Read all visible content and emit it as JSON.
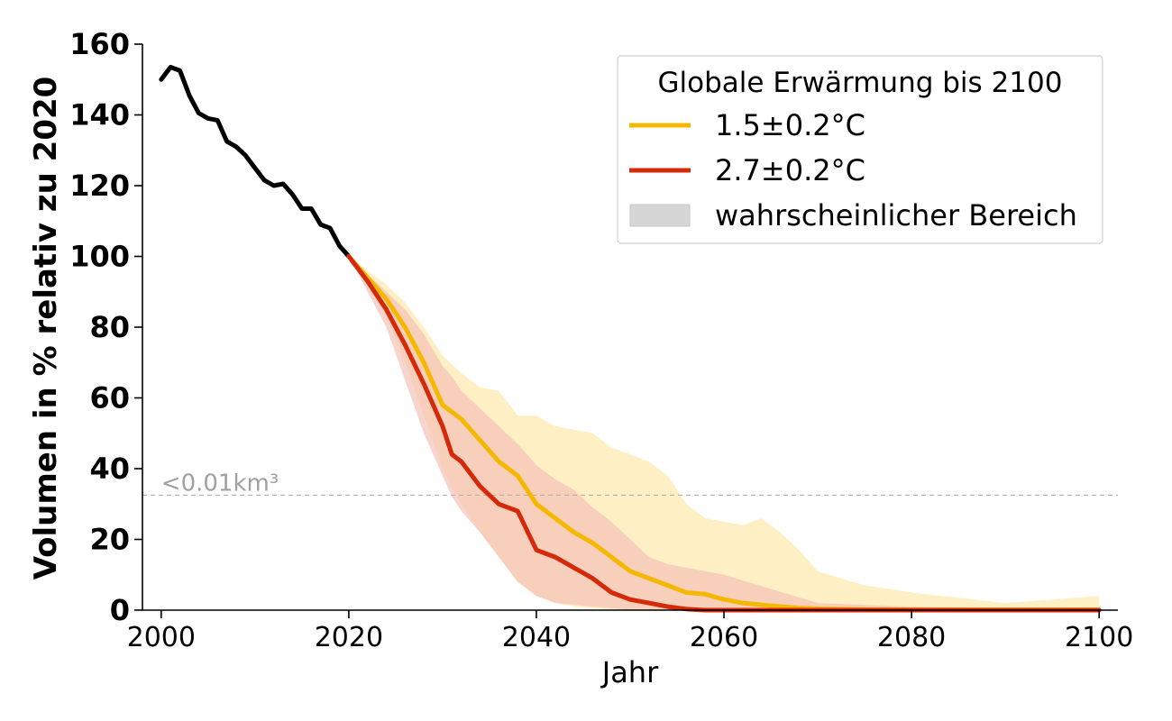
{
  "chart_data": {
    "type": "line",
    "title": "",
    "xlabel": "Jahr",
    "ylabel": "Volumen in % relativ zu 2020",
    "xlim": [
      1998,
      2102
    ],
    "ylim": [
      0,
      160
    ],
    "x_ticks": [
      2000,
      2020,
      2040,
      2060,
      2080,
      2100
    ],
    "x_tick_labels": [
      "2000",
      "2020",
      "2040",
      "2060",
      "2080",
      "2100"
    ],
    "y_ticks": [
      0,
      20,
      40,
      60,
      80,
      100,
      120,
      140,
      160
    ],
    "y_tick_labels": [
      "0",
      "20",
      "40",
      "60",
      "80",
      "100",
      "120",
      "140",
      "160"
    ],
    "grid": false,
    "legend": {
      "title": "Globale Erwärmung bis 2100",
      "placement": "top-right",
      "entries": [
        {
          "label": "1.5±0.2°C",
          "kind": "line",
          "color": "#f5b800"
        },
        {
          "label": "2.7±0.2°C",
          "kind": "line",
          "color": "#d42a0a"
        },
        {
          "label": "wahrscheinlicher Bereich",
          "kind": "patch",
          "color": "#d6d6d6"
        }
      ]
    },
    "annotation": {
      "text": "<0.01km³",
      "y": 32.5,
      "line_style": "dashed",
      "color": "#b0b0b0"
    },
    "historical": {
      "color": "#000000",
      "x": [
        2000,
        2001,
        2002,
        2003,
        2004,
        2005,
        2006,
        2007,
        2008,
        2009,
        2010,
        2011,
        2012,
        2013,
        2014,
        2015,
        2016,
        2017,
        2018,
        2019,
        2020
      ],
      "y": [
        150,
        153.5,
        152.5,
        145.5,
        140.5,
        139,
        138.5,
        132.5,
        131,
        128.5,
        125,
        121.5,
        120,
        120.5,
        117.5,
        113.5,
        113.5,
        109,
        108,
        103,
        100
      ]
    },
    "series": [
      {
        "name": "1.5±0.2°C",
        "color": "#f5b800",
        "band_color": "#fde9b0",
        "x": [
          2020,
          2022,
          2024,
          2026,
          2028,
          2030,
          2032,
          2034,
          2036,
          2038,
          2040,
          2042,
          2044,
          2046,
          2048,
          2050,
          2052,
          2054,
          2056,
          2058,
          2060,
          2062,
          2064,
          2066,
          2068,
          2070,
          2075,
          2080,
          2090,
          2100
        ],
        "y": [
          100,
          94,
          88,
          80,
          70,
          58,
          54,
          48,
          42,
          38,
          30,
          26,
          22,
          19,
          15,
          11,
          9,
          7,
          5,
          4.5,
          3,
          2,
          1.5,
          1,
          0.6,
          0.4,
          0.2,
          0.1,
          0.1,
          0.1
        ],
        "upper": [
          100,
          96,
          92,
          87,
          80,
          72,
          67,
          63,
          62,
          55,
          55,
          52,
          51,
          50,
          46,
          44,
          42,
          38,
          30,
          26,
          25,
          24,
          26,
          22,
          17,
          11,
          7,
          5,
          2,
          4
        ],
        "lower": [
          100,
          92,
          83,
          70,
          55,
          40,
          30,
          22,
          15,
          8,
          4,
          2,
          1,
          0.5,
          0.2,
          0.1,
          0,
          0,
          0,
          0,
          0,
          0,
          0,
          0,
          0,
          0,
          0,
          0,
          0,
          0
        ]
      },
      {
        "name": "2.7±0.2°C",
        "color": "#d42a0a",
        "band_color": "#f3c2b8",
        "x": [
          2020,
          2022,
          2024,
          2026,
          2028,
          2030,
          2031,
          2032,
          2034,
          2036,
          2038,
          2040,
          2042,
          2044,
          2046,
          2048,
          2050,
          2052,
          2054,
          2056,
          2058,
          2060,
          2070,
          2080,
          2090,
          2100
        ],
        "y": [
          100,
          93,
          85,
          75,
          64,
          52,
          44,
          42,
          35,
          30,
          28,
          17,
          15,
          12,
          9,
          5,
          3,
          2,
          1,
          0.3,
          0,
          0,
          0,
          0,
          0,
          0
        ],
        "upper": [
          100,
          95,
          90,
          85,
          78,
          69,
          66,
          62,
          57,
          52,
          47,
          41,
          37,
          34,
          29,
          25,
          20,
          15,
          13,
          12,
          11,
          10,
          2,
          1,
          0.5,
          0.3
        ],
        "lower": [
          100,
          90,
          80,
          65,
          50,
          38,
          32,
          28,
          22,
          15,
          8,
          4,
          2,
          1.5,
          1,
          0.5,
          0,
          0,
          0,
          0,
          0,
          0,
          0,
          0,
          0,
          0
        ]
      }
    ]
  }
}
